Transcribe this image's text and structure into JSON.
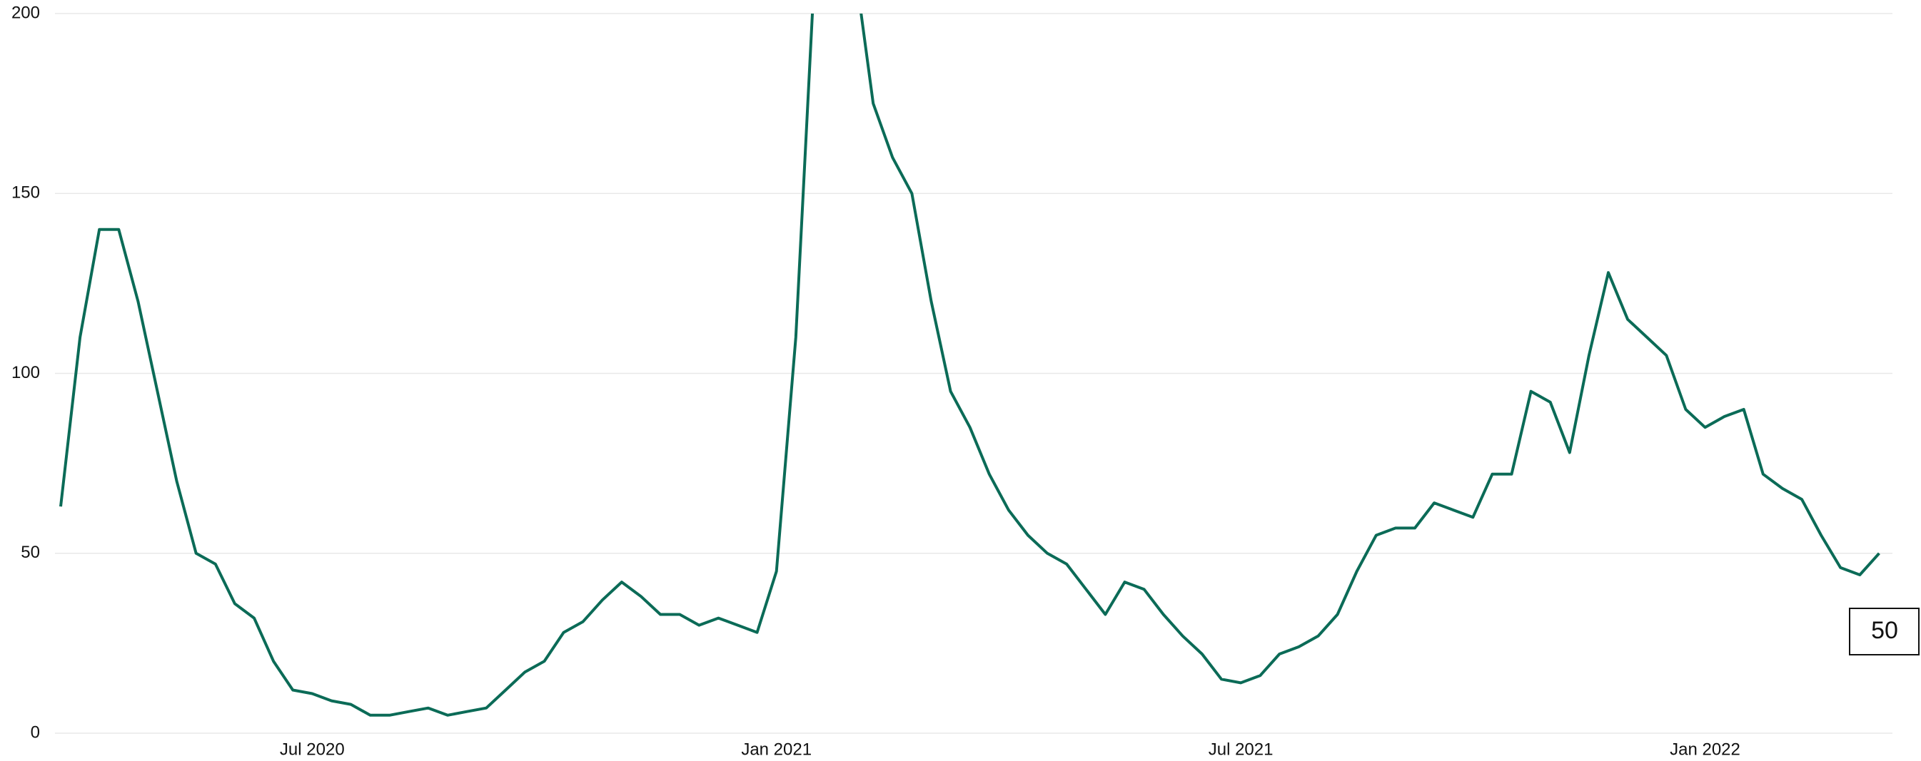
{
  "chart_data": {
    "type": "line",
    "categories": [
      null,
      null,
      null,
      null,
      null,
      null,
      null,
      null,
      null,
      null,
      null,
      null,
      null,
      "Jul 2020",
      null,
      null,
      null,
      null,
      null,
      null,
      null,
      null,
      null,
      null,
      null,
      null,
      null,
      null,
      null,
      null,
      null,
      null,
      null,
      null,
      null,
      null,
      null,
      "Jan 2021",
      null,
      null,
      null,
      null,
      null,
      null,
      null,
      null,
      null,
      null,
      null,
      null,
      null,
      null,
      null,
      null,
      null,
      null,
      null,
      null,
      null,
      null,
      null,
      "Jul 2021",
      null,
      null,
      null,
      null,
      null,
      null,
      null,
      null,
      null,
      null,
      null,
      null,
      null,
      null,
      null,
      null,
      null,
      null,
      null,
      null,
      null,
      null,
      null,
      "Jan 2022",
      null,
      null,
      null,
      null,
      null,
      null,
      null,
      null,
      null
    ],
    "values": [
      63,
      110,
      140,
      140,
      120,
      95,
      70,
      50,
      47,
      36,
      32,
      20,
      12,
      11,
      9,
      8,
      5,
      5,
      6,
      7,
      5,
      6,
      7,
      12,
      17,
      20,
      28,
      31,
      37,
      42,
      38,
      33,
      33,
      30,
      32,
      30,
      28,
      45,
      110,
      215,
      220,
      215,
      175,
      160,
      150,
      120,
      95,
      85,
      72,
      62,
      55,
      50,
      47,
      40,
      33,
      42,
      40,
      33,
      27,
      22,
      15,
      14,
      16,
      22,
      24,
      27,
      33,
      45,
      55,
      57,
      57,
      64,
      62,
      60,
      72,
      72,
      95,
      92,
      78,
      105,
      128,
      115,
      110,
      105,
      90,
      85,
      88,
      90,
      72,
      68,
      65,
      55,
      46,
      44,
      50
    ],
    "color": "#0b6b57",
    "ylim": [
      0,
      200
    ],
    "yticks": [
      0,
      50,
      100,
      150,
      200
    ],
    "grid": true
  }
}
